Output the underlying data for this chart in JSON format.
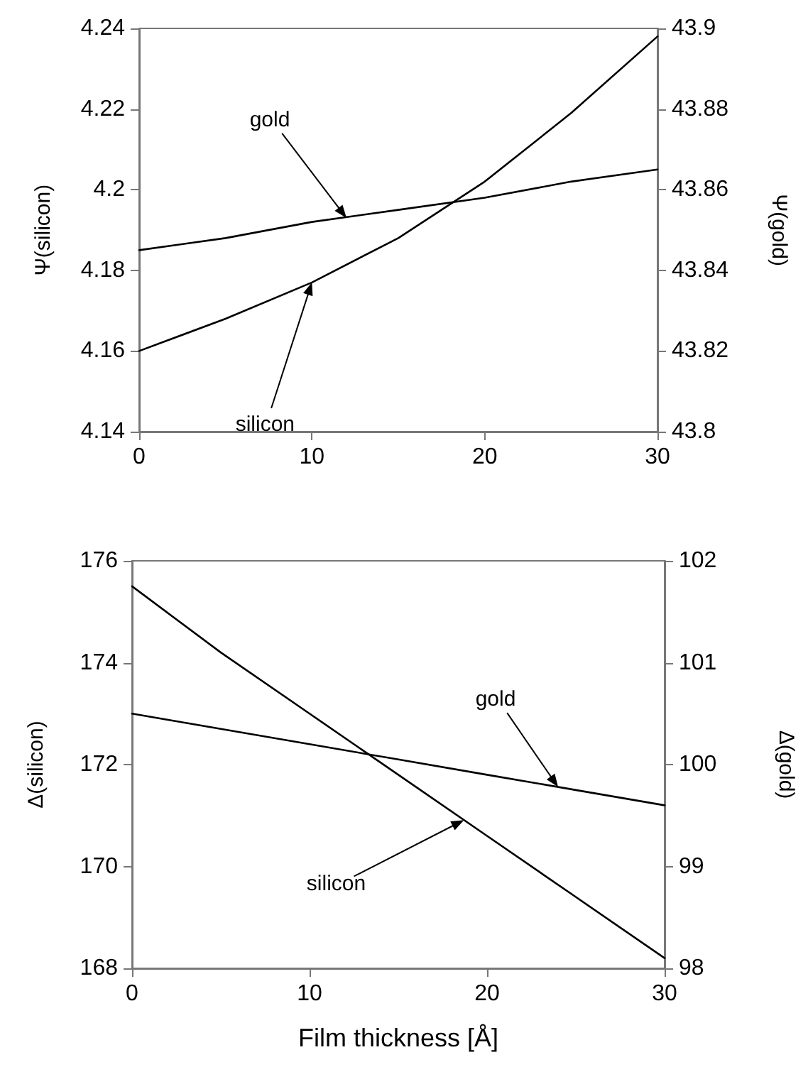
{
  "chart_data": [
    {
      "type": "line",
      "ylabel": "Ψ(silicon)",
      "y2label": "Ψ(gold)",
      "x": [
        0,
        5,
        10,
        15,
        20,
        25,
        30
      ],
      "series": [
        {
          "color": "#000000",
          "values": [
            4.16,
            4.168,
            4.177,
            4.188,
            4.202,
            4.219,
            4.238
          ]
        },
        {
          "color": "#000000",
          "axis": "y2",
          "values": [
            43.845,
            43.848,
            43.852,
            43.855,
            43.858,
            43.862,
            43.865
          ]
        }
      ],
      "xlim": [
        0,
        30
      ],
      "xticks": [
        0,
        10,
        20,
        30
      ],
      "ylim": [
        4.14,
        4.24
      ],
      "yticks": [
        4.14,
        4.16,
        4.18,
        4.2,
        4.22,
        4.24
      ],
      "y2lim": [
        43.8,
        43.9
      ],
      "y2ticks": [
        43.8,
        43.82,
        43.84,
        43.86,
        43.88,
        43.9
      ],
      "annotations": [
        {
          "text": "gold",
          "x": 12,
          "y": 4.193
        },
        {
          "text": "silicon",
          "x": 10,
          "y": 4.177
        }
      ],
      "grid": false,
      "marker": "none",
      "line_style": "solid"
    },
    {
      "type": "line",
      "xlabel": "Film thickness [Å]",
      "ylabel": "Δ(silicon)",
      "y2label": "Δ(gold)",
      "x": [
        0,
        5,
        10,
        15,
        20,
        25,
        30
      ],
      "series": [
        {
          "color": "#000000",
          "values": [
            175.5,
            174.2,
            173.0,
            171.8,
            170.6,
            169.4,
            168.2
          ]
        },
        {
          "color": "#000000",
          "axis": "y2",
          "values": [
            100.5,
            100.35,
            100.2,
            100.05,
            99.9,
            99.75,
            99.6
          ]
        }
      ],
      "xlim": [
        0,
        30
      ],
      "xticks": [
        0,
        10,
        20,
        30
      ],
      "ylim": [
        168,
        176
      ],
      "yticks": [
        168,
        170,
        172,
        174,
        176
      ],
      "y2lim": [
        98,
        102
      ],
      "y2ticks": [
        98,
        99,
        100,
        101,
        102
      ],
      "annotations": [
        {
          "text": "gold",
          "x": 24,
          "y": 171.56
        },
        {
          "text": "silicon",
          "x": 18.7,
          "y": 170.91
        }
      ],
      "grid": false,
      "marker": "none",
      "line_style": "solid"
    }
  ]
}
